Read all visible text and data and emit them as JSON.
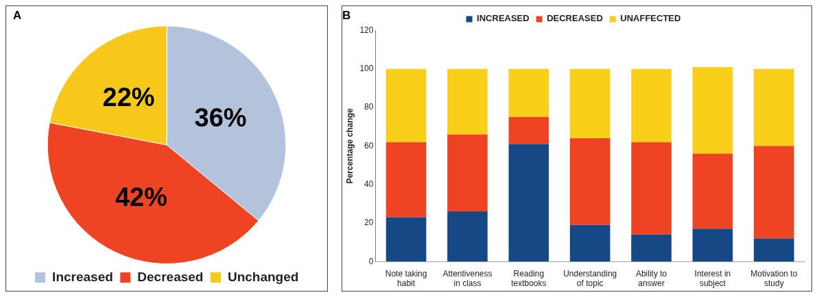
{
  "chart_data": [
    {
      "type": "pie",
      "title": "A",
      "categories": [
        "Increased",
        "Decreased",
        "Unchanged"
      ],
      "values": [
        36,
        42,
        22
      ],
      "colors": [
        "#b4c3dc",
        "#ee4423",
        "#f7c81a"
      ],
      "value_labels": [
        "36%",
        "42%",
        "22%"
      ],
      "legend": "bottom"
    },
    {
      "type": "bar",
      "title": "B",
      "stacked": true,
      "legend": "top",
      "ylabel": "Percentage change",
      "ylim": [
        0,
        120
      ],
      "yticks": [
        0,
        20,
        40,
        60,
        80,
        100,
        120
      ],
      "categories": [
        "Note taking habit",
        "Attentiveness in class",
        "Reading textbooks",
        "Understanding of topic",
        "Ability to answer",
        "Interest in subject",
        "Motivation to study"
      ],
      "series": [
        {
          "name": "INCREASED",
          "color": "#164886",
          "values": [
            23,
            26,
            61,
            19,
            14,
            17,
            12
          ]
        },
        {
          "name": "DECREASED",
          "color": "#ee4423",
          "values": [
            39,
            40,
            14,
            45,
            48,
            39,
            48
          ]
        },
        {
          "name": "UNAFFECTED",
          "color": "#f9cf1a",
          "values": [
            38,
            34,
            25,
            36,
            38,
            45,
            40
          ]
        }
      ]
    }
  ]
}
